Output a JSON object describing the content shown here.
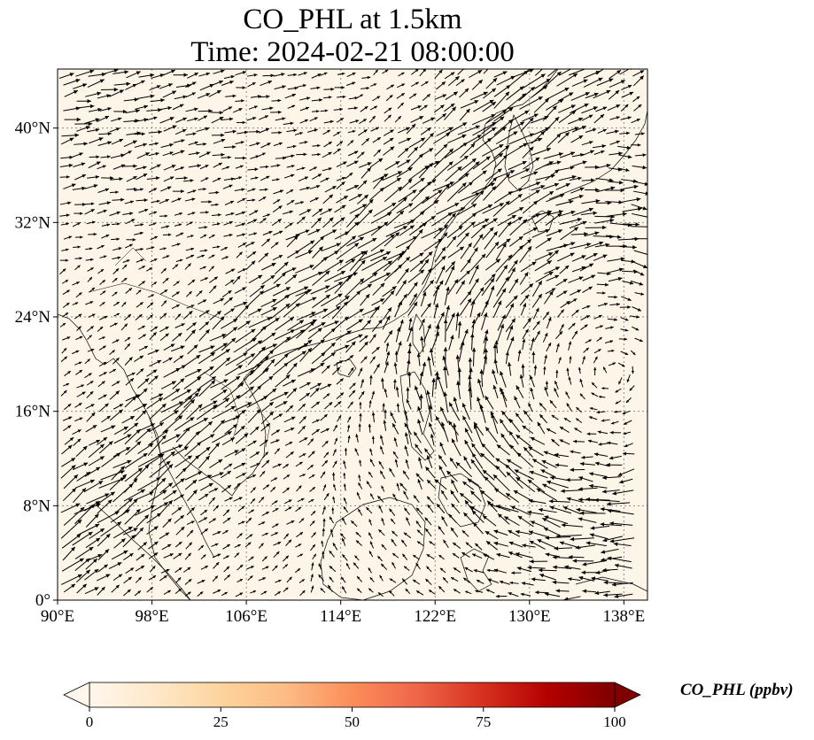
{
  "title_line1": "CO_PHL at 1.5km",
  "title_line2": "Time: 2024-02-21 08:00:00",
  "map": {
    "background_color": "#fdf5e8",
    "land_outline_color": "#000000",
    "grid_color": "#8a8a8a",
    "lon_range": [
      90,
      140
    ],
    "lat_range": [
      0,
      45
    ],
    "lon_ticks": [
      {
        "value": 90,
        "label": "90°E"
      },
      {
        "value": 98,
        "label": "98°E"
      },
      {
        "value": 106,
        "label": "106°E"
      },
      {
        "value": 114,
        "label": "114°E"
      },
      {
        "value": 122,
        "label": "122°E"
      },
      {
        "value": 130,
        "label": "130°E"
      },
      {
        "value": 138,
        "label": "138°E"
      }
    ],
    "lat_ticks": [
      {
        "value": 0,
        "label": "0°"
      },
      {
        "value": 8,
        "label": "8°N"
      },
      {
        "value": 16,
        "label": "16°N"
      },
      {
        "value": 24,
        "label": "24°N"
      },
      {
        "value": 32,
        "label": "32°N"
      },
      {
        "value": 40,
        "label": "40°N"
      }
    ]
  },
  "colorbar": {
    "title": "CO_PHL (ppbv)",
    "ticks": [
      "0",
      "25",
      "50",
      "75",
      "100"
    ],
    "tick_values": [
      0,
      25,
      50,
      75,
      100
    ],
    "range": [
      0,
      100
    ],
    "colors": [
      "#fff7ec",
      "#fee8c8",
      "#fdd49e",
      "#fdbb84",
      "#fc8d59",
      "#ef6548",
      "#d7301f",
      "#b30000",
      "#7f0000"
    ]
  }
}
